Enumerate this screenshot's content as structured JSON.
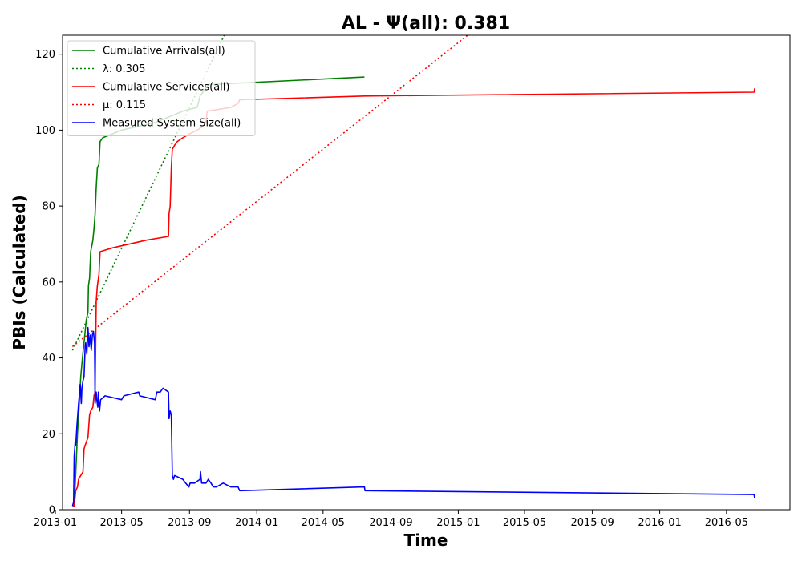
{
  "chart_data": {
    "type": "line",
    "title": "AL -  Ψ(all): 0.381",
    "xlabel": "Time",
    "ylabel": "PBIs (Calculated)",
    "xlim": [
      "2013-01-14",
      "2016-08-24"
    ],
    "ylim": [
      0,
      125
    ],
    "grid": false,
    "legend_position": "top-left",
    "x_ticks": [
      "2013-01",
      "2013-05",
      "2013-09",
      "2014-01",
      "2014-05",
      "2014-09",
      "2015-01",
      "2015-05",
      "2015-09",
      "2016-01",
      "2016-05"
    ],
    "y_ticks": [
      0,
      20,
      40,
      60,
      80,
      100,
      120
    ],
    "series": [
      {
        "name": "Cumulative Arrivals(all)",
        "style": "solid",
        "color": "#008000",
        "points": [
          [
            "2013-02-04",
            1
          ],
          [
            "2013-02-07",
            10
          ],
          [
            "2013-02-10",
            20
          ],
          [
            "2013-02-13",
            27
          ],
          [
            "2013-02-16",
            35
          ],
          [
            "2013-02-19",
            40
          ],
          [
            "2013-02-22",
            44
          ],
          [
            "2013-02-26",
            50
          ],
          [
            "2013-03-01",
            52
          ],
          [
            "2013-03-02",
            59
          ],
          [
            "2013-03-04",
            61
          ],
          [
            "2013-03-06",
            68
          ],
          [
            "2013-03-10",
            71
          ],
          [
            "2013-03-12",
            74
          ],
          [
            "2013-03-14",
            78
          ],
          [
            "2013-03-16",
            85
          ],
          [
            "2013-03-18",
            90
          ],
          [
            "2013-03-21",
            91
          ],
          [
            "2013-03-23",
            97
          ],
          [
            "2013-03-28",
            98
          ],
          [
            "2013-05-01",
            100
          ],
          [
            "2013-07-01",
            102
          ],
          [
            "2013-08-20",
            105
          ],
          [
            "2013-09-15",
            106
          ],
          [
            "2013-09-20",
            109
          ],
          [
            "2013-10-05",
            112
          ],
          [
            "2014-07-15",
            114
          ]
        ]
      },
      {
        "name": "λ: 0.305",
        "style": "dotted",
        "color": "#008000",
        "points": [
          [
            "2013-02-01",
            42
          ],
          [
            "2013-11-03",
            125
          ]
        ]
      },
      {
        "name": "Cumulative Services(all)",
        "style": "solid",
        "color": "#ff0000",
        "points": [
          [
            "2013-02-01",
            1
          ],
          [
            "2013-02-04",
            1
          ],
          [
            "2013-02-07",
            5
          ],
          [
            "2013-02-10",
            6
          ],
          [
            "2013-02-12",
            8
          ],
          [
            "2013-02-16",
            9
          ],
          [
            "2013-02-20",
            10
          ],
          [
            "2013-02-22",
            16
          ],
          [
            "2013-02-24",
            17
          ],
          [
            "2013-03-01",
            19
          ],
          [
            "2013-03-04",
            25
          ],
          [
            "2013-03-06",
            26
          ],
          [
            "2013-03-10",
            27
          ],
          [
            "2013-03-12",
            30
          ],
          [
            "2013-03-14",
            31
          ],
          [
            "2013-03-16",
            55
          ],
          [
            "2013-03-18",
            59
          ],
          [
            "2013-03-21",
            62
          ],
          [
            "2013-03-23",
            68
          ],
          [
            "2013-04-15",
            69
          ],
          [
            "2013-06-15",
            71
          ],
          [
            "2013-07-25",
            72
          ],
          [
            "2013-07-26",
            78
          ],
          [
            "2013-07-28",
            80
          ],
          [
            "2013-07-30",
            90
          ],
          [
            "2013-08-01",
            95
          ],
          [
            "2013-08-05",
            96
          ],
          [
            "2013-08-10",
            97
          ],
          [
            "2013-08-20",
            98
          ],
          [
            "2013-09-01",
            99
          ],
          [
            "2013-09-15",
            100
          ],
          [
            "2013-09-25",
            101
          ],
          [
            "2013-10-01",
            102
          ],
          [
            "2013-10-03",
            105
          ],
          [
            "2013-11-15",
            106
          ],
          [
            "2013-11-28",
            107
          ],
          [
            "2013-12-01",
            108
          ],
          [
            "2014-07-15",
            109
          ],
          [
            "2016-06-20",
            110
          ],
          [
            "2016-06-21",
            111
          ]
        ]
      },
      {
        "name": "μ: 0.115",
        "style": "dotted",
        "color": "#ff0000",
        "points": [
          [
            "2013-02-01",
            43
          ],
          [
            "2015-01-18",
            125
          ]
        ]
      },
      {
        "name": "Measured System Size(all)",
        "style": "solid",
        "color": "#0000ff",
        "points": [
          [
            "2013-02-01",
            1
          ],
          [
            "2013-02-03",
            2
          ],
          [
            "2013-02-04",
            14
          ],
          [
            "2013-02-06",
            18
          ],
          [
            "2013-02-07",
            17
          ],
          [
            "2013-02-09",
            22
          ],
          [
            "2013-02-10",
            24
          ],
          [
            "2013-02-12",
            28
          ],
          [
            "2013-02-14",
            31
          ],
          [
            "2013-02-15",
            33
          ],
          [
            "2013-02-17",
            28
          ],
          [
            "2013-02-18",
            32
          ],
          [
            "2013-02-20",
            34
          ],
          [
            "2013-02-22",
            35
          ],
          [
            "2013-02-24",
            43
          ],
          [
            "2013-02-25",
            44
          ],
          [
            "2013-02-27",
            41
          ],
          [
            "2013-03-01",
            48
          ],
          [
            "2013-03-03",
            43
          ],
          [
            "2013-03-05",
            46
          ],
          [
            "2013-03-07",
            42
          ],
          [
            "2013-03-09",
            46
          ],
          [
            "2013-03-11",
            47
          ],
          [
            "2013-03-13",
            44
          ],
          [
            "2013-03-14",
            28
          ],
          [
            "2013-03-16",
            31
          ],
          [
            "2013-03-17",
            29
          ],
          [
            "2013-03-19",
            27
          ],
          [
            "2013-03-20",
            31
          ],
          [
            "2013-03-22",
            26
          ],
          [
            "2013-03-24",
            29
          ],
          [
            "2013-04-01",
            30
          ],
          [
            "2013-05-01",
            29
          ],
          [
            "2013-05-05",
            30
          ],
          [
            "2013-06-01",
            31
          ],
          [
            "2013-06-03",
            30
          ],
          [
            "2013-07-01",
            29
          ],
          [
            "2013-07-04",
            31
          ],
          [
            "2013-07-10",
            31
          ],
          [
            "2013-07-15",
            32
          ],
          [
            "2013-07-25",
            31
          ],
          [
            "2013-07-26",
            24
          ],
          [
            "2013-07-28",
            26
          ],
          [
            "2013-07-30",
            25
          ],
          [
            "2013-08-01",
            9
          ],
          [
            "2013-08-03",
            8
          ],
          [
            "2013-08-05",
            9
          ],
          [
            "2013-08-20",
            8
          ],
          [
            "2013-08-25",
            7
          ],
          [
            "2013-08-31",
            6
          ],
          [
            "2013-09-02",
            7
          ],
          [
            "2013-09-10",
            7
          ],
          [
            "2013-09-20",
            8
          ],
          [
            "2013-09-21",
            10
          ],
          [
            "2013-09-23",
            7
          ],
          [
            "2013-10-01",
            7
          ],
          [
            "2013-10-05",
            8
          ],
          [
            "2013-10-10",
            7
          ],
          [
            "2013-10-14",
            6
          ],
          [
            "2013-10-20",
            6
          ],
          [
            "2013-11-01",
            7
          ],
          [
            "2013-11-15",
            6
          ],
          [
            "2013-11-28",
            6
          ],
          [
            "2013-12-01",
            5
          ],
          [
            "2014-07-15",
            6
          ],
          [
            "2014-07-16",
            5
          ],
          [
            "2016-06-20",
            4
          ],
          [
            "2016-06-21",
            3
          ]
        ]
      }
    ]
  }
}
